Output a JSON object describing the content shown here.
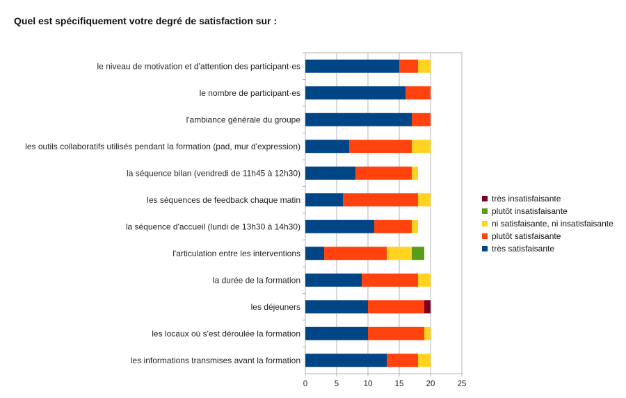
{
  "title": "Quel est spécifiquement votre degré de satisfaction sur :",
  "chart_data": {
    "type": "bar",
    "orientation": "horizontal",
    "stacked": true,
    "categories": [
      "le niveau de motivation et d'attention des participant·es",
      "le nombre de participant·es",
      "l'ambiance générale du groupe",
      "les outils collaboratifs utilisés pendant la formation (pad, mur d'expression)",
      "la séquence bilan (vendredi de 11h45 à 12h30)",
      "les séquences de feedback chaque matin",
      "la séquence d'accueil (lundi de 13h30 à 14h30)",
      "l'articulation entre les interventions",
      "la durée de la formation",
      "les déjeuners",
      "les locaux où s'est déroulée la formation",
      "les informations transmises avant la formation"
    ],
    "series": [
      {
        "name": "très satisfaisante",
        "color": "#004586",
        "values": [
          15,
          16,
          17,
          7,
          8,
          6,
          11,
          3,
          9,
          10,
          10,
          13
        ]
      },
      {
        "name": "plutôt satisfaisante",
        "color": "#ff420e",
        "values": [
          3,
          4,
          3,
          10,
          9,
          12,
          6,
          10,
          9,
          9,
          9,
          5
        ]
      },
      {
        "name": "ni satisfaisante, ni insatisfaisante",
        "color": "#ffd320",
        "values": [
          2,
          0,
          0,
          3,
          1,
          2,
          1,
          4,
          2,
          0,
          1,
          2
        ]
      },
      {
        "name": "plutôt insatisfaisante",
        "color": "#579d1c",
        "values": [
          0,
          0,
          0,
          0,
          0,
          0,
          0,
          2,
          0,
          0,
          0,
          0
        ]
      },
      {
        "name": "très insatisfaisante",
        "color": "#7e0021",
        "values": [
          0,
          0,
          0,
          0,
          0,
          0,
          0,
          0,
          0,
          1,
          0,
          0
        ]
      }
    ],
    "xlim": [
      0,
      25
    ],
    "xticks": [
      0,
      5,
      10,
      15,
      20,
      25
    ],
    "grid": true,
    "legend_position": "right",
    "legend_order": [
      "très insatisfaisante",
      "plutôt insatisfaisante",
      "ni satisfaisante, ni insatisfaisante",
      "plutôt satisfaisante",
      "très satisfaisante"
    ]
  }
}
